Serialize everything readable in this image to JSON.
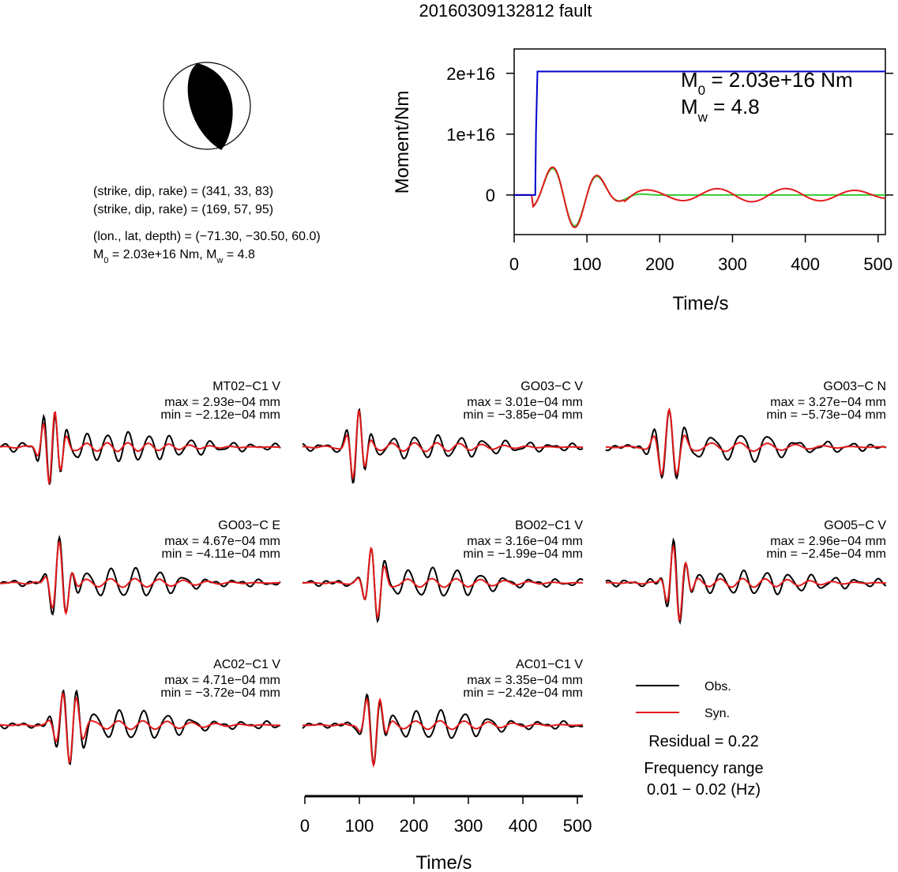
{
  "title": "20160309132812 fault",
  "mechanism": {
    "plane1": "(strike, dip, rake) = (341, 33, 83)",
    "plane2": "(strike, dip, rake) = (169, 57, 95)",
    "location": "(lon., lat, depth) = (−71.30, −30.50, 60.0)",
    "moment_prefix": "M",
    "moment_text": " = 2.03e+16 Nm, M",
    "mw_text": " = 4.8"
  },
  "colors": {
    "obs": "#000000",
    "syn": "#e31a1c",
    "moment": "#0000cc",
    "green": "#33cc33"
  },
  "moment_chart": {
    "type": "line",
    "xlabel": "Time/s",
    "ylabel": "Moment/Nm",
    "xlim": [
      0,
      510
    ],
    "ylim": [
      -6500000000000000.0,
      2.4e+16
    ],
    "x_ticks": [
      0,
      100,
      200,
      300,
      400,
      500
    ],
    "y_ticks": [
      0,
      1e+16,
      2e+16
    ],
    "x_tick_labels": [
      "0",
      "100",
      "200",
      "300",
      "400",
      "500"
    ],
    "y_tick_labels": [
      "0",
      "1e+16",
      "2e+16"
    ],
    "annotation_m0": "M",
    "annotation_m0_value": " = 2.03e+16 Nm",
    "annotation_mw": "M",
    "annotation_mw_value": " = 4.8",
    "moment_rate_start": 30,
    "final_moment": 2.03e+16
  },
  "chart_data": {
    "type": "line",
    "xlabel": "Time/s",
    "x_ticks": [
      0,
      100,
      200,
      300,
      400,
      500
    ],
    "x_tick_labels": [
      "0",
      "100",
      "200",
      "300",
      "400",
      "500"
    ],
    "xlim": [
      0,
      510
    ],
    "stations": [
      {
        "name": "MT02−C1 V",
        "max": "max = 2.93e−04 mm",
        "min": "min = −2.12e−04 mm",
        "row": 0,
        "col": 0
      },
      {
        "name": "GO03−C V",
        "max": "max = 3.01e−04 mm",
        "min": "min = −3.85e−04 mm",
        "row": 0,
        "col": 1
      },
      {
        "name": "GO03−C N",
        "max": "max = 3.27e−04 mm",
        "min": "min = −5.73e−04 mm",
        "row": 0,
        "col": 2
      },
      {
        "name": "GO03−C E",
        "max": "max = 4.67e−04 mm",
        "min": "min = −4.11e−04 mm",
        "row": 1,
        "col": 0
      },
      {
        "name": "BO02−C1 V",
        "max": "max = 3.16e−04 mm",
        "min": "min = −1.99e−04 mm",
        "row": 1,
        "col": 1
      },
      {
        "name": "GO05−C V",
        "max": "max = 2.96e−04 mm",
        "min": "min = −2.45e−04 mm",
        "row": 1,
        "col": 2
      },
      {
        "name": "AC02−C1 V",
        "max": "max = 4.71e−04 mm",
        "min": "min = −3.72e−04 mm",
        "row": 2,
        "col": 0
      },
      {
        "name": "AC01−C1 V",
        "max": "max = 3.35e−04 mm",
        "min": "min = −2.42e−04 mm",
        "row": 2,
        "col": 1
      }
    ],
    "legend": [
      {
        "label": "Obs.",
        "color": "#000000"
      },
      {
        "label": "Syn.",
        "color": "#e31a1c"
      }
    ]
  },
  "summary": {
    "residual": "Residual = 0.22",
    "freq_title": "Frequency range",
    "freq_value": "0.01 − 0.02 (Hz)"
  }
}
